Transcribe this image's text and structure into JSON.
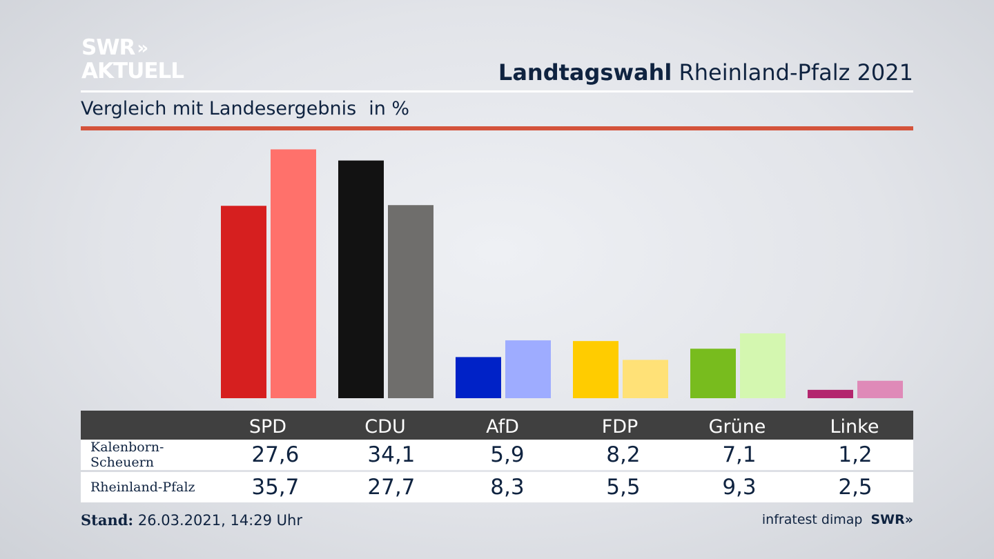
{
  "brand": {
    "line1": "SWR",
    "chevrons": "»",
    "line2": "AKTUELL"
  },
  "headline": {
    "bold": "Landtagswahl",
    "rest": "Rheinland-Pfalz 2021"
  },
  "subtitle": {
    "text": "Vergleich mit Landesergebnis",
    "unit": "in %"
  },
  "colors": {
    "accent_rule": "#d4533b",
    "table_header": "#404040"
  },
  "table": {
    "rows": [
      {
        "label": "Kalenborn-Scheuern",
        "values": [
          "27,6",
          "34,1",
          "5,9",
          "8,2",
          "7,1",
          "1,2"
        ]
      },
      {
        "label": "Rheinland-Pfalz",
        "values": [
          "35,7",
          "27,7",
          "8,3",
          "5,5",
          "9,3",
          "2,5"
        ]
      }
    ]
  },
  "footer": {
    "stand_label": "Stand:",
    "stand_value": "26.03.2021, 14:29 Uhr",
    "source": "infratest dimap",
    "source_brand": "SWR»"
  },
  "chart_data": {
    "type": "bar",
    "categories": [
      "SPD",
      "CDU",
      "AfD",
      "FDP",
      "Grüne",
      "Linke"
    ],
    "series": [
      {
        "name": "Kalenborn-Scheuern",
        "values": [
          27.6,
          34.1,
          5.9,
          8.2,
          7.1,
          1.2
        ],
        "colors": [
          "#d61f1f",
          "#121212",
          "#0022c7",
          "#ffcc00",
          "#78bc1e",
          "#b3266e"
        ]
      },
      {
        "name": "Rheinland-Pfalz",
        "values": [
          35.7,
          27.7,
          8.3,
          5.5,
          9.3,
          2.5
        ],
        "colors": [
          "#ff716b",
          "#6f6e6c",
          "#9eacff",
          "#ffe177",
          "#d4f7b0",
          "#df8ab8"
        ]
      }
    ],
    "ylim": [
      0,
      36
    ],
    "grid": false,
    "legend": "table-below"
  }
}
